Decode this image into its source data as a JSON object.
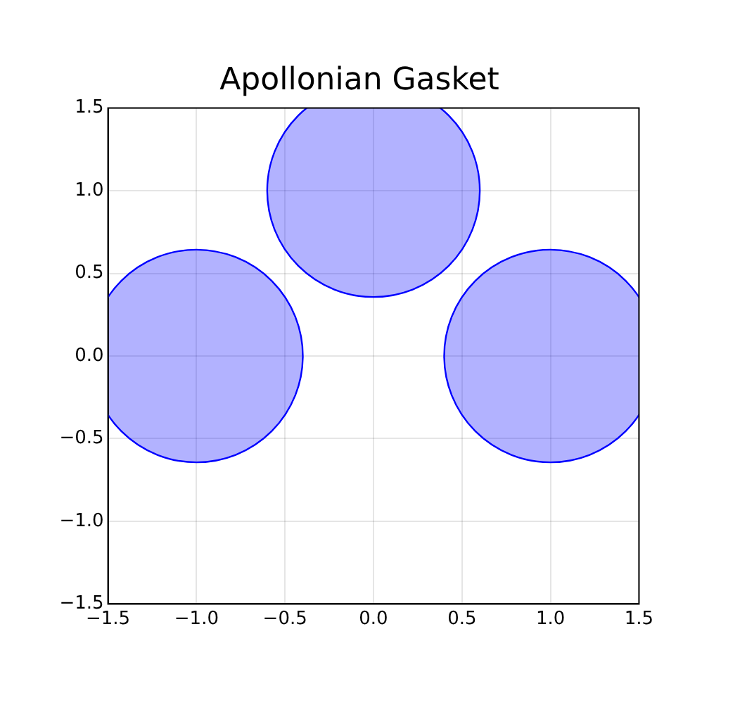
{
  "chart_data": {
    "type": "bubble",
    "title": "Apollonian Gasket",
    "x": [
      -1,
      0,
      1
    ],
    "series": [
      {
        "color": "#0000ff",
        "values": [
          0,
          1,
          0
        ],
        "sizes": [
          1,
          1,
          1
        ]
      }
    ],
    "xlim": [
      -1.5,
      1.5
    ],
    "ylim": [
      -1.5,
      1.5
    ],
    "xticks": [
      {
        "value": -1.5,
        "label": "−1.5"
      },
      {
        "value": -1,
        "label": "−1.0"
      },
      {
        "value": -0.5,
        "label": "−0.5"
      },
      {
        "value": 0,
        "label": "0.0"
      },
      {
        "value": 0.5,
        "label": "0.5"
      },
      {
        "value": 1,
        "label": "1.0"
      },
      {
        "value": 1.5,
        "label": "1.5"
      }
    ],
    "yticks": [
      {
        "value": -1.5,
        "label": "−1.5"
      },
      {
        "value": -1,
        "label": "−1.0"
      },
      {
        "value": -0.5,
        "label": "−0.5"
      },
      {
        "value": 0,
        "label": "0.0"
      },
      {
        "value": 0.5,
        "label": "0.5"
      },
      {
        "value": 1,
        "label": "1.0"
      },
      {
        "value": 1.5,
        "label": "1.5"
      }
    ],
    "grid": true,
    "legend": false
  }
}
